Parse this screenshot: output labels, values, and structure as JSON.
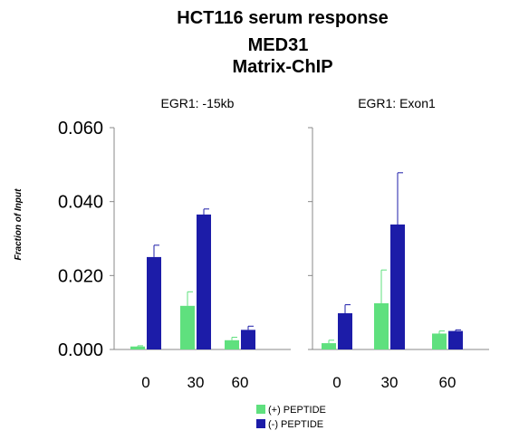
{
  "chart_data": {
    "type": "bar",
    "title_lines": [
      "HCT116 serum response",
      "MED31",
      "Matrix-ChIP"
    ],
    "ylabel": "Fraction of Input",
    "ylim": [
      0,
      0.06
    ],
    "yticks": [
      "0.000",
      "0.020",
      "0.040",
      "0.060"
    ],
    "ytick_values": [
      0,
      0.02,
      0.04,
      0.06
    ],
    "categories": [
      "0",
      "30",
      "60"
    ],
    "legend": [
      {
        "name": "(+) PEPTIDE",
        "color": "#5fe07e"
      },
      {
        "name": "(-) PEPTIDE",
        "color": "#1c1ca8"
      }
    ],
    "panels": [
      {
        "title": "EGR1: -15kb",
        "series": [
          {
            "name": "(+) PEPTIDE",
            "values": [
              0.0008,
              0.0118,
              0.0025
            ],
            "errors": [
              0.0002,
              0.0038,
              0.0008
            ]
          },
          {
            "name": "(-) PEPTIDE",
            "values": [
              0.025,
              0.0365,
              0.0053
            ],
            "errors": [
              0.0032,
              0.0015,
              0.001
            ]
          }
        ]
      },
      {
        "title": "EGR1: Exon1",
        "series": [
          {
            "name": "(+) PEPTIDE",
            "values": [
              0.0017,
              0.0125,
              0.0043
            ],
            "errors": [
              0.0008,
              0.009,
              0.0007
            ]
          },
          {
            "name": "(-) PEPTIDE",
            "values": [
              0.0098,
              0.0338,
              0.005
            ],
            "errors": [
              0.0023,
              0.014,
              0.0003
            ]
          }
        ]
      }
    ]
  }
}
